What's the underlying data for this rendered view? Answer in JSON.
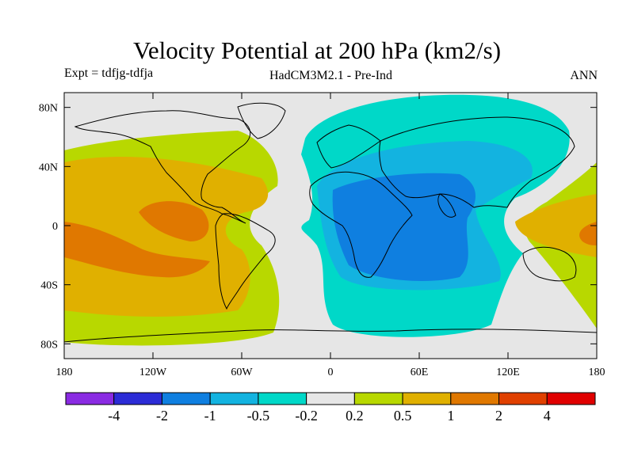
{
  "title": "Velocity Potential at 200 hPa (km2/s)",
  "subtitle": {
    "left": "Expt = tdfjg-tdfja",
    "center": "HadCM3M2.1 - Pre-Ind",
    "right": "ANN"
  },
  "map": {
    "projection": "equirectangular",
    "lon_range": [
      -180,
      180
    ],
    "lat_range": [
      -90,
      90
    ],
    "lon_ticks": [
      {
        "value": -180,
        "label": "180"
      },
      {
        "value": -120,
        "label": "120W"
      },
      {
        "value": -60,
        "label": "60W"
      },
      {
        "value": 0,
        "label": "0"
      },
      {
        "value": 60,
        "label": "60E"
      },
      {
        "value": 120,
        "label": "120E"
      },
      {
        "value": 180,
        "label": "180"
      }
    ],
    "lat_ticks": [
      {
        "value": 80,
        "label": "80N"
      },
      {
        "value": 40,
        "label": "40N"
      },
      {
        "value": 0,
        "label": "0"
      },
      {
        "value": -40,
        "label": "40S"
      },
      {
        "value": -80,
        "label": "80S"
      }
    ],
    "background_color": "#e6e6e6"
  },
  "colorbar": {
    "colors": [
      "#8a2be2",
      "#2c2cd6",
      "#0f7fe0",
      "#13b3e0",
      "#00d8c8",
      "#e6e6e6",
      "#b8d800",
      "#e0b000",
      "#e07800",
      "#e04000",
      "#e00000"
    ],
    "labels": [
      "-4",
      "-2",
      "-1",
      "-0.5",
      "-0.2",
      "0.2",
      "0.5",
      "1",
      "2",
      "4"
    ]
  }
}
